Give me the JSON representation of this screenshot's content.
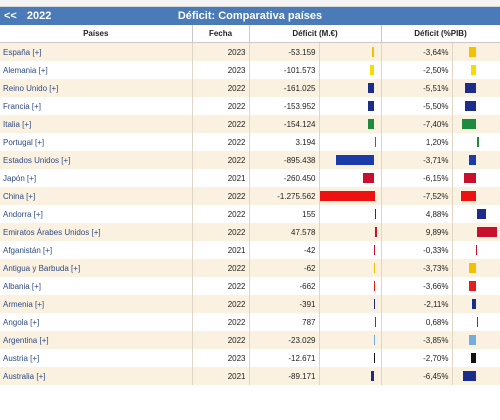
{
  "header": {
    "nav": "<<",
    "year": "2022",
    "title": "Déficit: Comparativa países"
  },
  "columns": [
    "Países",
    "Fecha",
    "Déficit (M.€)",
    "Déficit (%PIB)"
  ],
  "rows": [
    {
      "country": "España [+]",
      "year": "2023",
      "value": "-53.159",
      "pct": "-3,64%",
      "v": -53.159,
      "p": -3.64,
      "color": "#f2c200"
    },
    {
      "country": "Alemania [+]",
      "year": "2023",
      "value": "-101.573",
      "pct": "-2,50%",
      "v": -101.573,
      "p": -2.5,
      "color": "#f6dd00"
    },
    {
      "country": "Reino Unido [+]",
      "year": "2022",
      "value": "-161.025",
      "pct": "-5,51%",
      "v": -161.025,
      "p": -5.51,
      "color": "#1b2c8a"
    },
    {
      "country": "Francia [+]",
      "year": "2022",
      "value": "-153.952",
      "pct": "-5,50%",
      "v": -153.952,
      "p": -5.5,
      "color": "#1b2c8a"
    },
    {
      "country": "Italia [+]",
      "year": "2022",
      "value": "-154.124",
      "pct": "-7,40%",
      "v": -154.124,
      "p": -7.4,
      "color": "#1e8a3e"
    },
    {
      "country": "Portugal [+]",
      "year": "2022",
      "value": "3.194",
      "pct": "1,20%",
      "v": 3.194,
      "p": 1.2,
      "color": "#1e8a3e"
    },
    {
      "country": "Estados Unidos [+]",
      "year": "2022",
      "value": "-895.438",
      "pct": "-3,71%",
      "v": -895.438,
      "p": -3.71,
      "color": "#1b3ca8"
    },
    {
      "country": "Japón [+]",
      "year": "2021",
      "value": "-260.450",
      "pct": "-6,15%",
      "v": -260.45,
      "p": -6.15,
      "color": "#c8102e"
    },
    {
      "country": "China [+]",
      "year": "2022",
      "value": "-1.275.562",
      "pct": "-7,52%",
      "v": -1275.562,
      "p": -7.52,
      "color": "#ee1111"
    },
    {
      "country": "Andorra [+]",
      "year": "2022",
      "value": "155",
      "pct": "4,88%",
      "v": 0.155,
      "p": 4.88,
      "color": "#1b2c8a"
    },
    {
      "country": "Emiratos Árabes Unidos [+]",
      "year": "2022",
      "value": "47.578",
      "pct": "9,89%",
      "v": 47.578,
      "p": 9.89,
      "color": "#c8102e"
    },
    {
      "country": "Afganistán [+]",
      "year": "2021",
      "value": "-42",
      "pct": "-0,33%",
      "v": -0.042,
      "p": -0.33,
      "color": "#c8102e"
    },
    {
      "country": "Antigua y Barbuda [+]",
      "year": "2022",
      "value": "-62",
      "pct": "-3,73%",
      "v": -0.062,
      "p": -3.73,
      "color": "#f2c200"
    },
    {
      "country": "Albania [+]",
      "year": "2022",
      "value": "-662",
      "pct": "-3,66%",
      "v": -0.662,
      "p": -3.66,
      "color": "#e41e20"
    },
    {
      "country": "Armenia [+]",
      "year": "2022",
      "value": "-391",
      "pct": "-2,11%",
      "v": -0.391,
      "p": -2.11,
      "color": "#1b2c8a"
    },
    {
      "country": "Angola [+]",
      "year": "2022",
      "value": "787",
      "pct": "0,68%",
      "v": 0.787,
      "p": 0.68,
      "color": "#c8102e"
    },
    {
      "country": "Argentina [+]",
      "year": "2022",
      "value": "-23.029",
      "pct": "-3,85%",
      "v": -23.029,
      "p": -3.85,
      "color": "#74acdf"
    },
    {
      "country": "Austria [+]",
      "year": "2023",
      "value": "-12.671",
      "pct": "-2,70%",
      "v": -12.671,
      "p": -2.7,
      "color": "#111111"
    },
    {
      "country": "Australia [+]",
      "year": "2021",
      "value": "-89.171",
      "pct": "-6,45%",
      "v": -89.171,
      "p": -6.45,
      "color": "#1b2c8a"
    }
  ]
}
